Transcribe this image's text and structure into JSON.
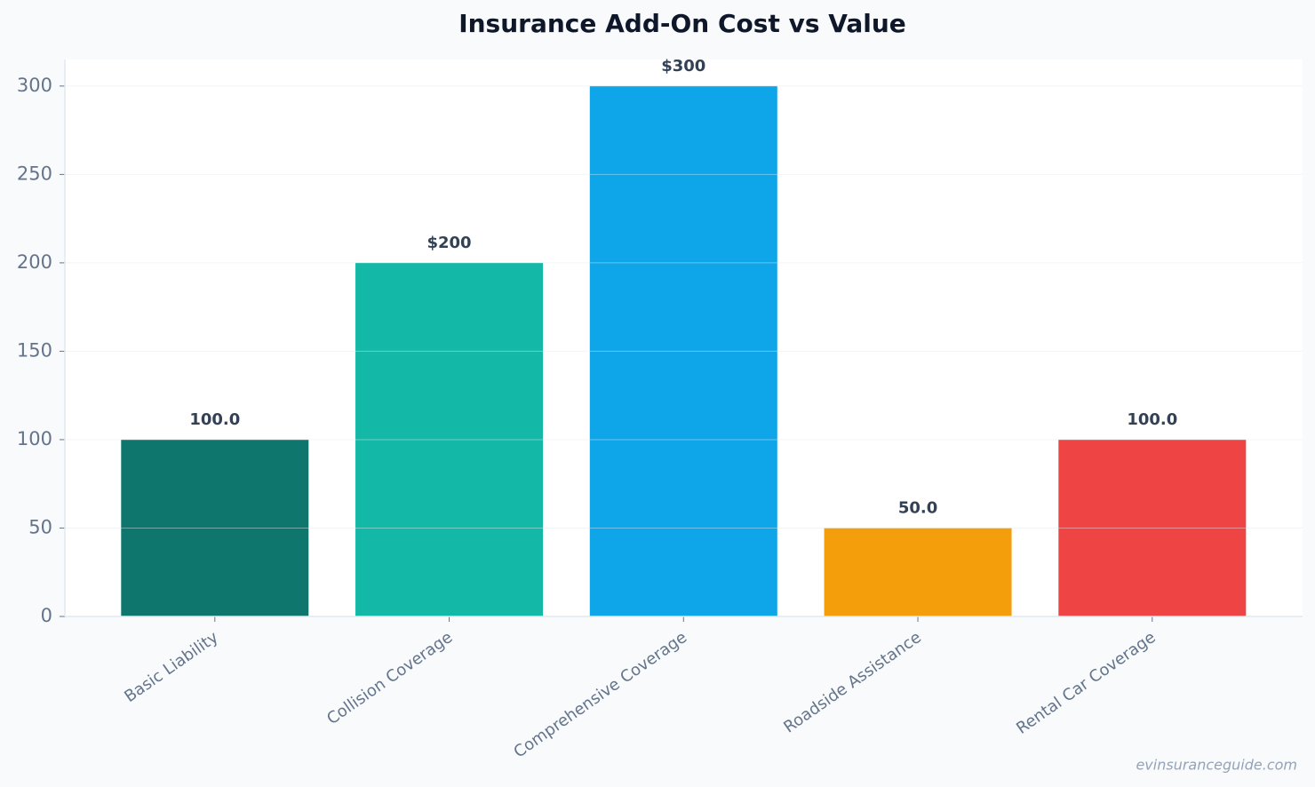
{
  "chart_data": {
    "type": "bar",
    "title": "Insurance Add-On Cost vs Value",
    "categories": [
      "Basic Liability",
      "Collision Coverage",
      "Comprehensive Coverage",
      "Roadside Assistance",
      "Rental Car Coverage"
    ],
    "values": [
      100,
      200,
      300,
      50,
      100
    ],
    "value_labels": [
      "100.0",
      "$200",
      "$300",
      "50.0",
      "100.0"
    ],
    "colors": [
      "#0f766e",
      "#14b8a6",
      "#0ea5e9",
      "#f59e0b",
      "#ef4444"
    ],
    "ylim": [
      0,
      315
    ],
    "yticks": [
      0,
      50,
      100,
      150,
      200,
      250,
      300
    ],
    "grid": true,
    "watermark": "evinsuranceguide.com"
  }
}
